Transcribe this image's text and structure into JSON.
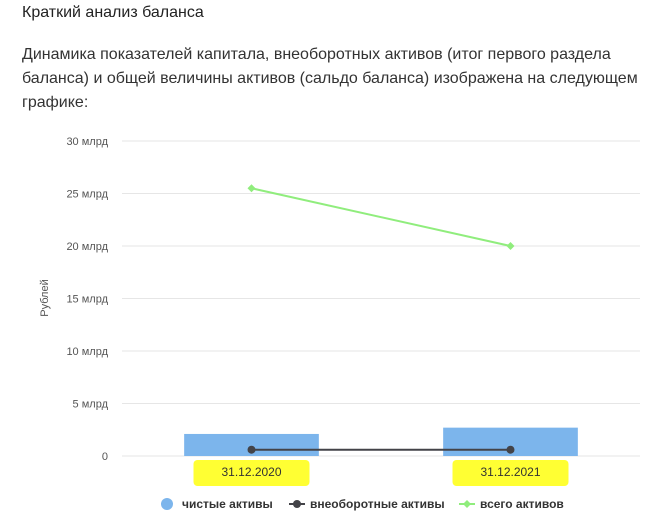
{
  "heading": "Краткий анализ баланса",
  "paragraph": "Динамика показателей капитала, внеоборотных активов (итог первого раздела баланса) и общей величины активов (сальдо баланса) изображена на следующем графике:",
  "colors": {
    "net_assets": "#7cb5ec",
    "non_current_assets": "#434348",
    "total_assets": "#90ed7d",
    "highlight": "#ffff33",
    "grid": "#e6e6e6"
  },
  "chart_data": {
    "type": "bar",
    "categories": [
      "31.12.2020",
      "31.12.2021"
    ],
    "ylabel": "Рублей",
    "ylim": [
      0,
      30000000000
    ],
    "ytick_values": [
      0,
      5000000000,
      10000000000,
      15000000000,
      20000000000,
      25000000000,
      30000000000
    ],
    "ytick_labels": [
      "0",
      "5 млрд",
      "10 млрд",
      "15 млрд",
      "20 млрд",
      "25 млрд",
      "30 млрд"
    ],
    "grid": true,
    "legend_position": "bottom",
    "series": [
      {
        "name": "чистые активы",
        "type": "bar",
        "values": [
          2100000000,
          2700000000
        ]
      },
      {
        "name": "внеоборотные активы",
        "type": "line",
        "values": [
          600000000,
          600000000
        ]
      },
      {
        "name": "всего активов",
        "type": "line",
        "values": [
          25500000000,
          20000000000
        ]
      }
    ]
  }
}
